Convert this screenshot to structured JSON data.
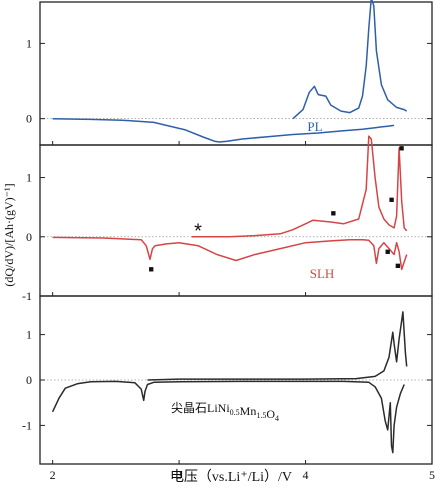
{
  "figure": {
    "xlabel": "电压（vs.Li⁺/Li）/V",
    "ylabel": "(dQ/dV)/[Ah·(gV)⁻¹]"
  },
  "chart_data": [
    {
      "type": "line",
      "panel": "top",
      "label": "PL",
      "color": "#2e5fa8",
      "xlim": [
        1.9,
        5.0
      ],
      "ylim": [
        -0.35,
        1.55
      ],
      "yticks": [
        "1",
        "0"
      ],
      "series": [
        {
          "name": "PL",
          "x": [
            2.0,
            2.3,
            2.55,
            2.8,
            3.05,
            3.2,
            3.28,
            3.32,
            3.38,
            3.5,
            3.7,
            3.9,
            4.1,
            4.3,
            4.45,
            4.55,
            4.6,
            4.65,
            4.7
          ],
          "y": [
            0.0,
            -0.01,
            -0.02,
            -0.05,
            -0.15,
            -0.25,
            -0.3,
            -0.31,
            -0.3,
            -0.27,
            -0.24,
            -0.21,
            -0.19,
            -0.16,
            -0.14,
            -0.12,
            -0.11,
            -0.1,
            -0.09
          ]
        },
        {
          "name": "",
          "x": [
            3.9,
            3.98,
            4.03,
            4.07,
            4.1,
            4.16,
            4.2,
            4.28,
            4.35,
            4.42,
            4.45,
            4.48,
            4.5,
            4.52,
            4.54,
            4.56,
            4.6,
            4.65,
            4.72,
            4.78,
            4.8
          ],
          "y": [
            0.0,
            0.12,
            0.35,
            0.43,
            0.32,
            0.3,
            0.18,
            0.1,
            0.08,
            0.14,
            0.3,
            0.7,
            1.2,
            1.6,
            1.5,
            0.9,
            0.45,
            0.25,
            0.15,
            0.12,
            0.1
          ]
        }
      ]
    },
    {
      "type": "line",
      "panel": "middle",
      "label": "SLH",
      "color": "#d64545",
      "xlim": [
        1.9,
        5.0
      ],
      "ylim": [
        -1.0,
        1.55
      ],
      "yticks": [
        "1",
        "0",
        "-1"
      ],
      "annotations": [
        {
          "text": "*",
          "x": 3.15,
          "y": 0.12
        },
        {
          "text": "■",
          "x": 2.78,
          "y": -0.53
        },
        {
          "text": "■",
          "x": 4.22,
          "y": 0.42
        },
        {
          "text": "■",
          "x": 4.65,
          "y": -0.23
        },
        {
          "text": "■",
          "x": 4.68,
          "y": 0.65
        },
        {
          "text": "■",
          "x": 4.73,
          "y": -0.47
        },
        {
          "text": "■",
          "x": 4.76,
          "y": 1.52
        }
      ],
      "series": [
        {
          "name": "SLH",
          "x": [
            2.0,
            2.4,
            2.7,
            2.74,
            2.77,
            2.79,
            2.81,
            2.84,
            2.9,
            3.0,
            3.15,
            3.3,
            3.45,
            3.6,
            3.8,
            4.0,
            4.2,
            4.35,
            4.45,
            4.5,
            4.54,
            4.56,
            4.58,
            4.62,
            4.66,
            4.7,
            4.72,
            4.74,
            4.76,
            4.8
          ],
          "y": [
            -0.01,
            -0.02,
            -0.05,
            -0.15,
            -0.38,
            -0.2,
            -0.15,
            -0.14,
            -0.12,
            -0.1,
            -0.15,
            -0.3,
            -0.4,
            -0.3,
            -0.2,
            -0.1,
            -0.07,
            -0.05,
            -0.05,
            -0.06,
            -0.15,
            -0.45,
            -0.2,
            -0.1,
            -0.2,
            -0.3,
            -0.1,
            -0.25,
            -0.55,
            -0.3
          ]
        },
        {
          "name": "",
          "x": [
            3.1,
            3.4,
            3.6,
            3.8,
            3.9,
            4.0,
            4.06,
            4.1,
            4.2,
            4.3,
            4.42,
            4.48,
            4.5,
            4.52,
            4.55,
            4.58,
            4.62,
            4.66,
            4.7,
            4.72,
            4.74,
            4.76,
            4.78,
            4.8
          ],
          "y": [
            0.0,
            0.0,
            0.02,
            0.05,
            0.12,
            0.22,
            0.28,
            0.27,
            0.25,
            0.22,
            0.3,
            0.8,
            1.7,
            1.65,
            1.0,
            0.5,
            0.3,
            0.2,
            0.15,
            0.35,
            1.5,
            0.6,
            0.15,
            0.1
          ]
        }
      ]
    },
    {
      "type": "line",
      "panel": "bottom",
      "label": "尖晶石LiNi0.5Mn1.5O4",
      "color": "#2b2b2b",
      "xlim": [
        1.9,
        5.0
      ],
      "ylim": [
        -1.85,
        1.85
      ],
      "yticks": [
        "1",
        "0",
        "-1"
      ],
      "xticks": [
        "2",
        "3",
        "4",
        "5"
      ],
      "series": [
        {
          "name": "",
          "x": [
            2.0,
            2.05,
            2.1,
            2.2,
            2.3,
            2.5,
            2.65,
            2.7,
            2.72,
            2.73,
            2.75,
            2.8,
            3.0,
            3.5,
            4.0,
            4.3,
            4.5,
            4.55,
            4.6,
            4.63,
            4.65,
            4.67,
            4.68,
            4.69,
            4.7,
            4.72,
            4.75,
            4.78
          ],
          "y": [
            -0.7,
            -0.4,
            -0.18,
            -0.08,
            -0.04,
            -0.03,
            -0.06,
            -0.2,
            -0.45,
            -0.25,
            -0.1,
            -0.05,
            -0.04,
            -0.03,
            -0.03,
            -0.03,
            -0.05,
            -0.15,
            -0.4,
            -0.9,
            -1.1,
            -0.5,
            -1.45,
            -1.6,
            -1.0,
            -0.6,
            -0.3,
            -0.1
          ]
        },
        {
          "name": "",
          "x": [
            2.75,
            3.0,
            3.5,
            4.0,
            4.4,
            4.55,
            4.62,
            4.66,
            4.69,
            4.7,
            4.72,
            4.74,
            4.77,
            4.79,
            4.8
          ],
          "y": [
            0.0,
            0.02,
            0.02,
            0.02,
            0.03,
            0.08,
            0.2,
            0.5,
            1.05,
            0.8,
            0.4,
            0.9,
            1.5,
            0.6,
            0.3
          ]
        }
      ]
    }
  ]
}
